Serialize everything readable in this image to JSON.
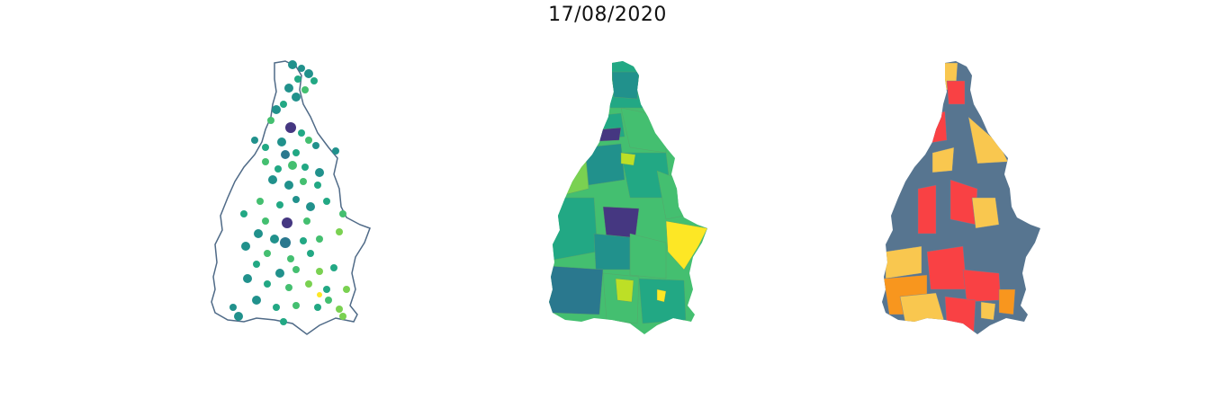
{
  "title": "17/08/2020",
  "panels": [
    {
      "name": "municipality-points",
      "kind": "proportional-symbols",
      "outline_color": "#4f6a87"
    },
    {
      "name": "municipality-choropleth",
      "kind": "continuous-choropleth"
    },
    {
      "name": "municipality-classification",
      "kind": "categorical-choropleth"
    }
  ],
  "colors": {
    "viridis_dark": "#453781",
    "viridis_blue": "#2a788e",
    "viridis_teal": "#21918c",
    "viridis_green": "#22a884",
    "viridis_lightgreen": "#44bf70",
    "viridis_lime": "#7ad151",
    "viridis_yellowgreen": "#bddf26",
    "viridis_yellow": "#fde725",
    "class_slate": "#577590",
    "class_red": "#f94144",
    "class_yellow": "#f9c74f",
    "class_orange": "#f8961e"
  }
}
